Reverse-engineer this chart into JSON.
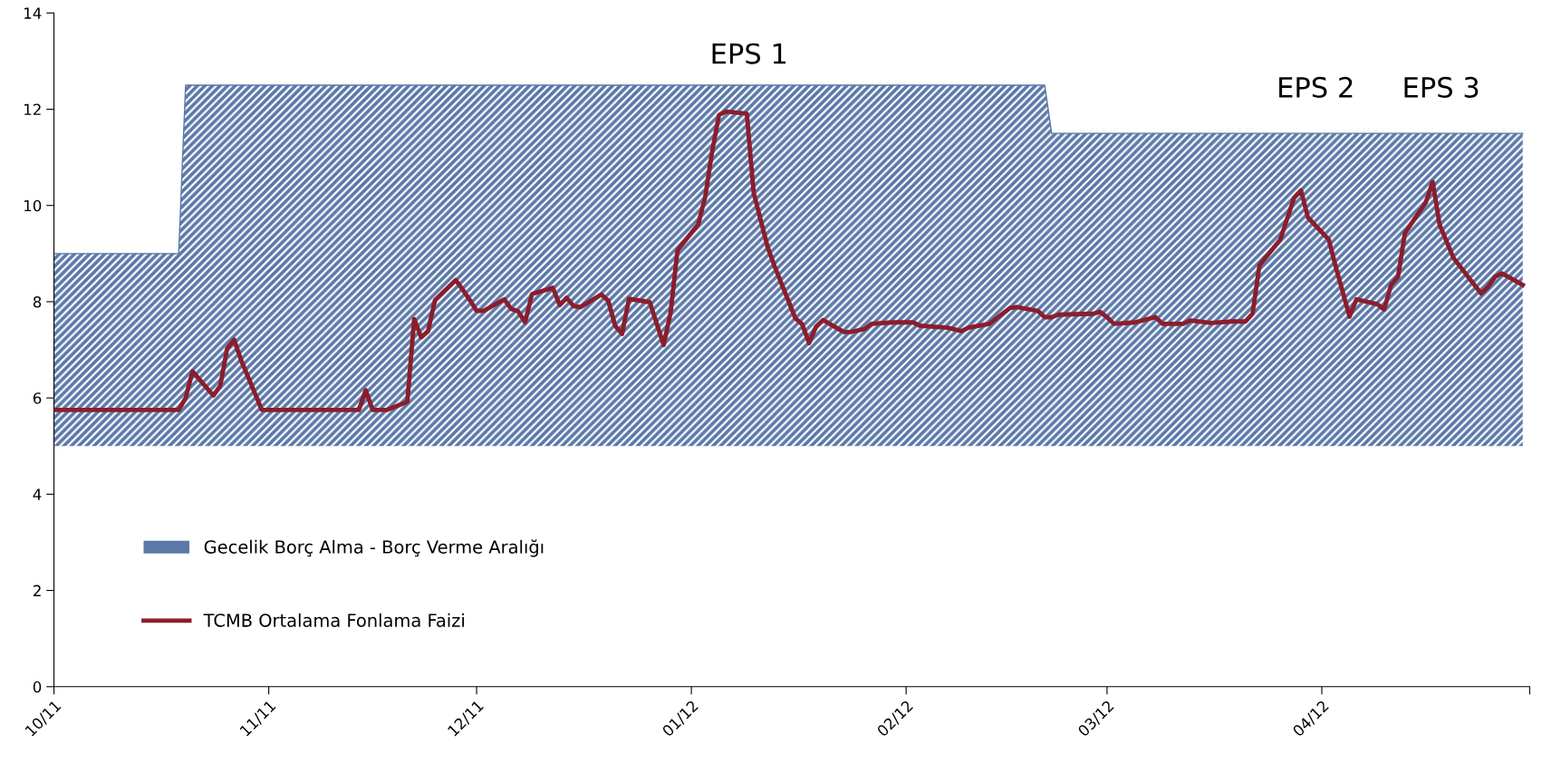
{
  "chart_data": {
    "type": "line",
    "xlim": [
      "2011-10-01",
      "2012-05-01"
    ],
    "xticks": [
      {
        "value": "2011-10-01",
        "label": "10/11"
      },
      {
        "value": "2011-11-01",
        "label": "11/11"
      },
      {
        "value": "2011-12-01",
        "label": "12/11"
      },
      {
        "value": "2012-01-01",
        "label": "01/12"
      },
      {
        "value": "2012-02-01",
        "label": "02/12"
      },
      {
        "value": "2012-03-01",
        "label": "03/12"
      },
      {
        "value": "2012-04-01",
        "label": "04/12"
      },
      {
        "value": "2012-05-01",
        "label": null
      }
    ],
    "ylim": [
      0,
      14
    ],
    "yticks": [
      0,
      2,
      4,
      6,
      8,
      10,
      12,
      14
    ],
    "grid": false,
    "legend": "left",
    "marker": "none",
    "line_style": "solid",
    "annotations": [
      "EPS 1",
      "EPS 2",
      "EPS 3"
    ],
    "series": [
      {
        "name": "Gecelik Borç Alma - Borç Verme Aralığı",
        "type": "line",
        "color": "#5a78a8",
        "x": [
          "2011-10-01",
          "2011-10-19",
          "2011-10-20",
          "2012-02-21",
          "2012-02-22",
          "2012-04-30"
        ],
        "values": [
          9,
          9,
          12.5,
          12.5,
          11.5,
          11.5
        ],
        "upper": [
          9,
          9,
          12.5,
          12.5,
          11.5,
          11.5
        ],
        "lower": [
          5,
          5,
          5,
          5,
          5,
          5
        ]
      },
      {
        "name": "TCMB Ortalama Fonlama Faizi",
        "color": "#8b1d2c",
        "x": [
          "2011-10-01",
          "2011-10-19",
          "2011-10-20",
          "2011-10-21",
          "2011-10-24",
          "2011-10-25",
          "2011-10-26",
          "2011-10-27",
          "2011-10-28",
          "2011-10-31",
          "2011-11-14",
          "2011-11-15",
          "2011-11-16",
          "2011-11-18",
          "2011-11-21",
          "2011-11-22",
          "2011-11-23",
          "2011-11-24",
          "2011-11-25",
          "2011-11-28",
          "2011-11-29",
          "2011-11-30",
          "2011-12-01",
          "2011-12-02",
          "2011-12-05",
          "2011-12-06",
          "2011-12-07",
          "2011-12-08",
          "2011-12-09",
          "2011-12-12",
          "2011-12-13",
          "2011-12-14",
          "2011-12-15",
          "2011-12-16",
          "2011-12-19",
          "2011-12-20",
          "2011-12-21",
          "2011-12-22",
          "2011-12-23",
          "2011-12-26",
          "2011-12-28",
          "2011-12-29",
          "2011-12-30",
          "2012-01-02",
          "2012-01-03",
          "2012-01-04",
          "2012-01-05",
          "2012-01-06",
          "2012-01-09",
          "2012-01-10",
          "2012-01-12",
          "2012-01-13",
          "2012-01-16",
          "2012-01-17",
          "2012-01-18",
          "2012-01-19",
          "2012-01-20",
          "2012-01-23",
          "2012-01-24",
          "2012-01-26",
          "2012-01-27",
          "2012-01-30",
          "2012-02-02",
          "2012-02-03",
          "2012-02-07",
          "2012-02-09",
          "2012-02-10",
          "2012-02-13",
          "2012-02-16",
          "2012-02-17",
          "2012-02-20",
          "2012-02-21",
          "2012-02-22",
          "2012-02-23",
          "2012-02-28",
          "2012-02-29",
          "2012-03-01",
          "2012-03-02",
          "2012-03-05",
          "2012-03-08",
          "2012-03-09",
          "2012-03-12",
          "2012-03-13",
          "2012-03-16",
          "2012-03-19",
          "2012-03-21",
          "2012-03-22",
          "2012-03-23",
          "2012-03-26",
          "2012-03-28",
          "2012-03-29",
          "2012-03-30",
          "2012-04-02",
          "2012-04-03",
          "2012-04-05",
          "2012-04-06",
          "2012-04-09",
          "2012-04-10",
          "2012-04-11",
          "2012-04-12",
          "2012-04-13",
          "2012-04-16",
          "2012-04-17",
          "2012-04-18",
          "2012-04-20",
          "2012-04-24",
          "2012-04-25",
          "2012-04-26",
          "2012-04-27",
          "2012-04-30"
        ],
        "values": [
          5.75,
          5.75,
          6.0,
          6.55,
          6.05,
          6.25,
          7.03,
          7.21,
          6.79,
          5.75,
          5.75,
          6.16,
          5.75,
          5.75,
          5.92,
          7.64,
          7.26,
          7.39,
          8.03,
          8.45,
          8.25,
          8.04,
          7.81,
          7.81,
          8.05,
          7.85,
          7.8,
          7.57,
          8.16,
          8.29,
          7.93,
          8.08,
          7.91,
          7.89,
          8.15,
          8.02,
          7.5,
          7.33,
          8.06,
          7.99,
          7.1,
          7.77,
          9.07,
          9.61,
          10.18,
          11.12,
          11.88,
          11.95,
          11.91,
          10.26,
          9.14,
          8.74,
          7.66,
          7.53,
          7.14,
          7.48,
          7.62,
          7.37,
          7.37,
          7.43,
          7.54,
          7.57,
          7.57,
          7.5,
          7.46,
          7.39,
          7.46,
          7.54,
          7.87,
          7.89,
          7.81,
          7.68,
          7.68,
          7.73,
          7.75,
          7.79,
          7.68,
          7.54,
          7.57,
          7.68,
          7.54,
          7.54,
          7.61,
          7.56,
          7.59,
          7.59,
          7.75,
          8.76,
          9.29,
          10.16,
          10.31,
          9.75,
          9.29,
          8.73,
          7.69,
          8.05,
          7.95,
          7.84,
          8.35,
          8.52,
          9.43,
          10.06,
          10.49,
          9.6,
          8.91,
          8.17,
          8.31,
          8.52,
          8.59,
          8.35
        ]
      }
    ]
  }
}
